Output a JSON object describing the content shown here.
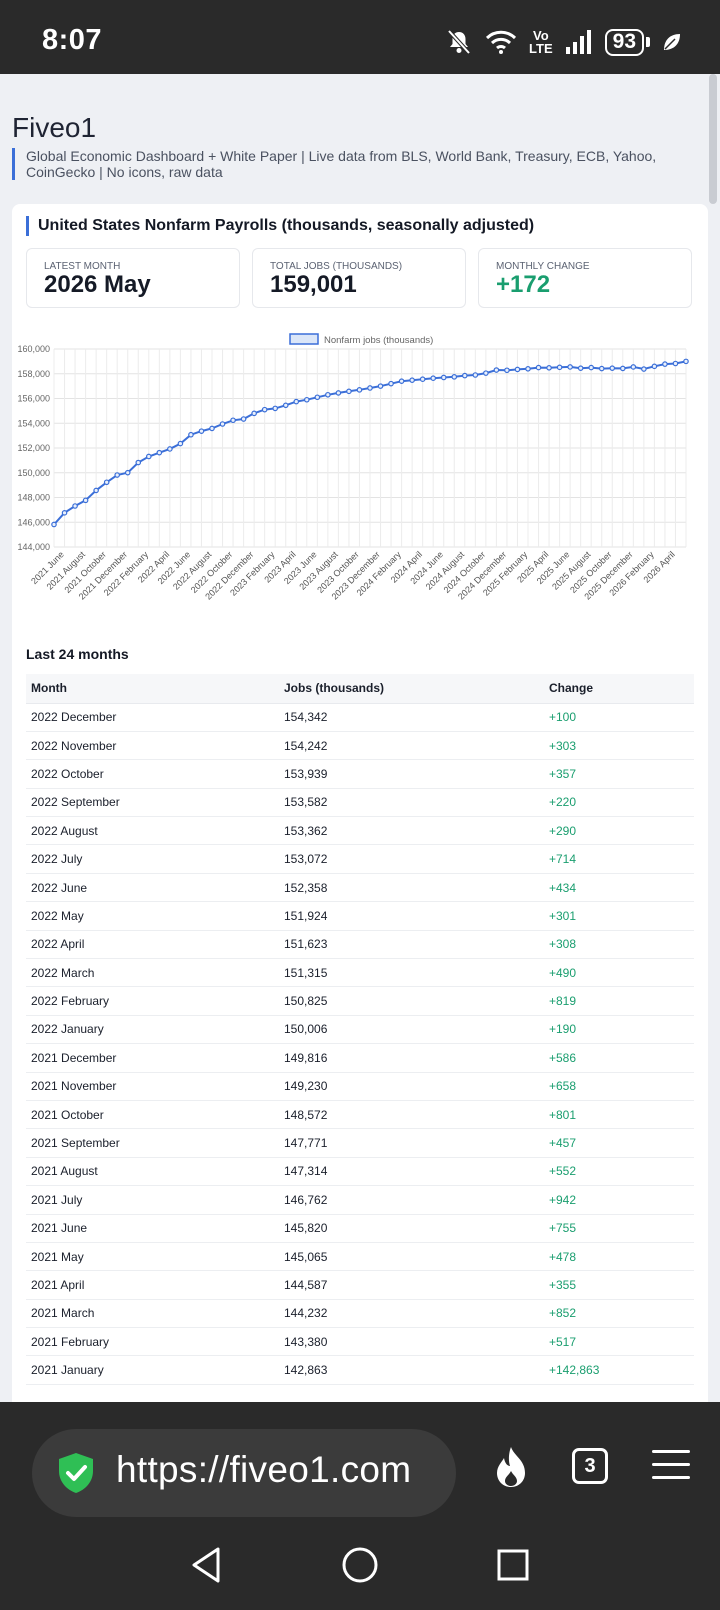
{
  "status_bar": {
    "time": "8:07",
    "network": "Vo\nLTE",
    "battery": "93"
  },
  "site": {
    "title": "Fiveo1",
    "subtitle": "Global Economic Dashboard + White Paper | Live data from BLS, World Bank, Treasury, ECB, Yahoo, CoinGecko | No icons, raw data"
  },
  "card": {
    "title": "United States Nonfarm Payrolls (thousands, seasonally adjusted)",
    "stats": [
      {
        "label": "LATEST MONTH",
        "value": "2026 May"
      },
      {
        "label": "TOTAL JOBS (THOUSANDS)",
        "value": "159,001"
      },
      {
        "label": "MONTHLY CHANGE",
        "value": "+172"
      }
    ]
  },
  "chart_data": {
    "type": "line",
    "legend": "Nonfarm jobs (thousands)",
    "legend_position": "top",
    "grid": true,
    "ylim": [
      144000,
      160000
    ],
    "y_ticks": [
      "160,000",
      "158,000",
      "156,000",
      "154,000",
      "152,000",
      "150,000",
      "148,000",
      "146,000",
      "144,000"
    ],
    "x_tick_labels": [
      "2021 June",
      "2021 August",
      "2021 October",
      "2021 December",
      "2022 February",
      "2022 April",
      "2022 June",
      "2022 August",
      "2022 October",
      "2022 December",
      "2023 February",
      "2023 April",
      "2023 June",
      "2023 August",
      "2023 October",
      "2023 December",
      "2024 February",
      "2024 April",
      "2024 June",
      "2024 August",
      "2024 October",
      "2024 December",
      "2025 February",
      "2025 April",
      "2025 June",
      "2025 August",
      "2025 October",
      "2025 December",
      "2026 February",
      "2026 April"
    ],
    "series": [
      {
        "name": "Nonfarm jobs (thousands)",
        "color": "#3b6fd8",
        "values": [
          145820,
          146762,
          147314,
          147771,
          148572,
          149230,
          149816,
          150006,
          150825,
          151315,
          151623,
          151924,
          152358,
          153072,
          153362,
          153582,
          153939,
          154242,
          154342,
          154800,
          155100,
          155200,
          155450,
          155750,
          155900,
          156100,
          156300,
          156450,
          156580,
          156700,
          156850,
          157000,
          157200,
          157400,
          157480,
          157560,
          157640,
          157700,
          157750,
          157850,
          157900,
          158050,
          158300,
          158280,
          158350,
          158400,
          158500,
          158480,
          158520,
          158550,
          158450,
          158500,
          158420,
          158450,
          158430,
          158550,
          158380,
          158600,
          158780,
          158829,
          159001
        ]
      }
    ]
  },
  "table": {
    "title": "Last 24 months",
    "headers": [
      "Month",
      "Jobs (thousands)",
      "Change"
    ],
    "rows": [
      [
        "2022 December",
        "154,342",
        "+100"
      ],
      [
        "2022 November",
        "154,242",
        "+303"
      ],
      [
        "2022 October",
        "153,939",
        "+357"
      ],
      [
        "2022 September",
        "153,582",
        "+220"
      ],
      [
        "2022 August",
        "153,362",
        "+290"
      ],
      [
        "2022 July",
        "153,072",
        "+714"
      ],
      [
        "2022 June",
        "152,358",
        "+434"
      ],
      [
        "2022 May",
        "151,924",
        "+301"
      ],
      [
        "2022 April",
        "151,623",
        "+308"
      ],
      [
        "2022 March",
        "151,315",
        "+490"
      ],
      [
        "2022 February",
        "150,825",
        "+819"
      ],
      [
        "2022 January",
        "150,006",
        "+190"
      ],
      [
        "2021 December",
        "149,816",
        "+586"
      ],
      [
        "2021 November",
        "149,230",
        "+658"
      ],
      [
        "2021 October",
        "148,572",
        "+801"
      ],
      [
        "2021 September",
        "147,771",
        "+457"
      ],
      [
        "2021 August",
        "147,314",
        "+552"
      ],
      [
        "2021 July",
        "146,762",
        "+942"
      ],
      [
        "2021 June",
        "145,820",
        "+755"
      ],
      [
        "2021 May",
        "145,065",
        "+478"
      ],
      [
        "2021 April",
        "144,587",
        "+355"
      ],
      [
        "2021 March",
        "144,232",
        "+852"
      ],
      [
        "2021 February",
        "143,380",
        "+517"
      ],
      [
        "2021 January",
        "142,863",
        "+142,863"
      ]
    ]
  },
  "browser": {
    "url": "https://fiveo1.com",
    "tab_count": "3"
  }
}
